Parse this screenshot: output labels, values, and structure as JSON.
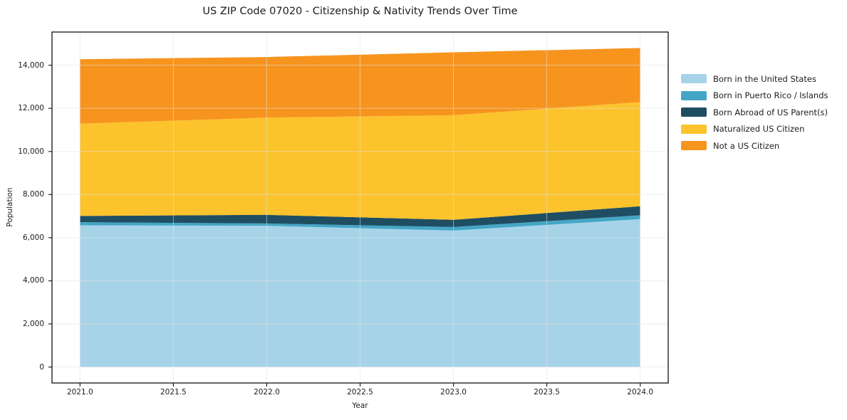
{
  "title": "US ZIP Code 07020 - Citizenship & Nativity Trends Over Time",
  "chart_data": {
    "type": "area",
    "stacked": true,
    "title": "US ZIP Code 07020 - Citizenship & Nativity Trends Over Time",
    "xlabel": "Year",
    "ylabel": "Population",
    "x": [
      2021,
      2022,
      2023,
      2024
    ],
    "series": [
      {
        "name": "Born in the United States",
        "color": "#a7d3e8",
        "values": [
          6570,
          6550,
          6330,
          6860
        ]
      },
      {
        "name": "Born in Puerto Rico / Islands",
        "color": "#44a6c6",
        "values": [
          150,
          110,
          165,
          180
        ]
      },
      {
        "name": "Born Abroad of US Parent(s)",
        "color": "#1f4e63",
        "values": [
          290,
          400,
          335,
          420
        ]
      },
      {
        "name": "Naturalized US Citizen",
        "color": "#fcc32d",
        "values": [
          4280,
          4510,
          4850,
          4830
        ]
      },
      {
        "name": "Not a US Citizen",
        "color": "#f7941e",
        "values": [
          2990,
          2810,
          2920,
          2510
        ]
      }
    ],
    "stack_totals": [
      14280,
      14380,
      14600,
      14800
    ],
    "xlim": [
      2020.85,
      2024.15
    ],
    "ylim": [
      -740,
      15540
    ],
    "xticks": [
      2021.0,
      2021.5,
      2022.0,
      2022.5,
      2023.0,
      2023.5,
      2024.0
    ],
    "xtick_labels": [
      "2021.0",
      "2021.5",
      "2022.0",
      "2022.5",
      "2023.0",
      "2023.5",
      "2024.0"
    ],
    "yticks": [
      0,
      2000,
      4000,
      6000,
      8000,
      10000,
      12000,
      14000
    ],
    "ytick_labels": [
      "0",
      "2,000",
      "4,000",
      "6,000",
      "8,000",
      "10,000",
      "12,000",
      "14,000"
    ],
    "grid": true,
    "legend_position": "right-outside",
    "axis_color": "#222222",
    "grid_color": "#e3e3e3",
    "background_color": "#ffffff"
  }
}
